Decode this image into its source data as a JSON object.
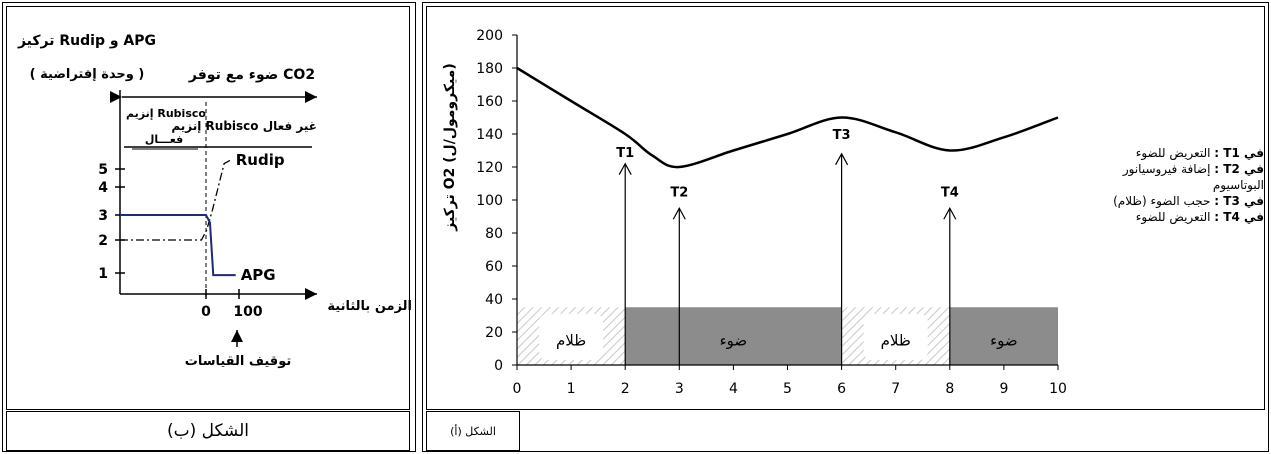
{
  "panel_b": {
    "caption": "الشكل (ب)",
    "y_title_line1": "تركيز Rudip و APG",
    "y_title_line2": "( وحدة إفتراضية )",
    "light_co2_label": "ضوء مع توفر CO2",
    "rubisco_active_line1": "إنزيم Rubisco",
    "rubisco_active_line2": "فعـــال",
    "rubisco_inactive": "إنزيم Rubisco غير فعال",
    "x_title": "الزمن بالثانية",
    "stop_measure": "توقيف القياسات",
    "y_ticks": [
      "1",
      "2",
      "3",
      "4",
      "5"
    ],
    "x_ticks": [
      "0",
      "100"
    ],
    "series": [
      {
        "name": "Rudip",
        "style": "dash-dot"
      },
      {
        "name": "APG",
        "style": "solid"
      }
    ]
  },
  "panel_a": {
    "caption": "الشكل (أ)",
    "y_title": "تركيز O2 (ميكرومول/ل)",
    "notes": [
      {
        "head": "في T1 :",
        "text": "التعريض للضوء"
      },
      {
        "head": "في T2 :",
        "text": "إضافة فيروسيانور البوتاسيوم"
      },
      {
        "head": "في T3 :",
        "text": "حجب الضوء (ظلام)"
      },
      {
        "head": "في T4 :",
        "text": "التعريض للضوء"
      }
    ]
  },
  "chart_data": [
    {
      "type": "line",
      "panel": "panel_b",
      "xlabel": "الزمن بالثانية",
      "ylabel": "تركيز Rudip و APG ( وحدة إفتراضية )",
      "ylim": [
        0,
        6
      ],
      "y_tick_values": [
        1,
        2,
        3,
        4,
        5
      ],
      "x_tick_values": [
        0,
        100
      ],
      "series": [
        {
          "name": "Rudip",
          "points": [
            [
              -190,
              2
            ],
            [
              -10,
              2
            ],
            [
              2,
              2.4
            ],
            [
              20,
              3.2
            ],
            [
              55,
              5.3
            ],
            [
              75,
              5.5
            ]
          ]
        },
        {
          "name": "APG",
          "points": [
            [
              -190,
              3
            ],
            [
              0,
              3
            ],
            [
              12,
              2.7
            ],
            [
              22,
              0.9
            ],
            [
              90,
              0.9
            ]
          ]
        }
      ],
      "annotations": [
        "Rudip",
        "APG",
        "توقيف القياسات"
      ]
    },
    {
      "type": "line",
      "panel": "panel_a",
      "ylabel": "تركيز O2 (ميكرومول/ل)",
      "xlim": [
        0,
        10
      ],
      "ylim": [
        0,
        200
      ],
      "x_ticks": [
        0,
        1,
        2,
        3,
        4,
        5,
        6,
        7,
        8,
        9,
        10
      ],
      "y_ticks": [
        0,
        20,
        40,
        60,
        80,
        100,
        120,
        140,
        160,
        180,
        200
      ],
      "series": [
        {
          "points": [
            [
              0,
              180
            ],
            [
              1,
              160
            ],
            [
              2,
              140
            ],
            [
              2.5,
              127
            ],
            [
              3,
              120
            ],
            [
              4,
              130
            ],
            [
              5,
              140
            ],
            [
              6,
              150
            ],
            [
              7,
              141
            ],
            [
              8,
              130
            ],
            [
              9,
              138
            ],
            [
              10,
              150
            ]
          ]
        }
      ],
      "events": [
        {
          "label": "T1",
          "x": 2,
          "arrow_top": 122,
          "label_y": 126
        },
        {
          "label": "T2",
          "x": 3,
          "arrow_top": 95,
          "label_y": 102
        },
        {
          "label": "T3",
          "x": 6,
          "arrow_top": 128,
          "label_y": 137
        },
        {
          "label": "T4",
          "x": 8,
          "arrow_top": 95,
          "label_y": 102
        }
      ],
      "bands": [
        {
          "from": 0,
          "to": 2,
          "label": "ظلام",
          "kind": "dark"
        },
        {
          "from": 2,
          "to": 6,
          "label": "ضوء",
          "kind": "light"
        },
        {
          "from": 6,
          "to": 8,
          "label": "ظلام",
          "kind": "dark"
        },
        {
          "from": 8,
          "to": 10,
          "label": "ضوء",
          "kind": "light"
        }
      ],
      "band_range": [
        0,
        35
      ]
    }
  ]
}
